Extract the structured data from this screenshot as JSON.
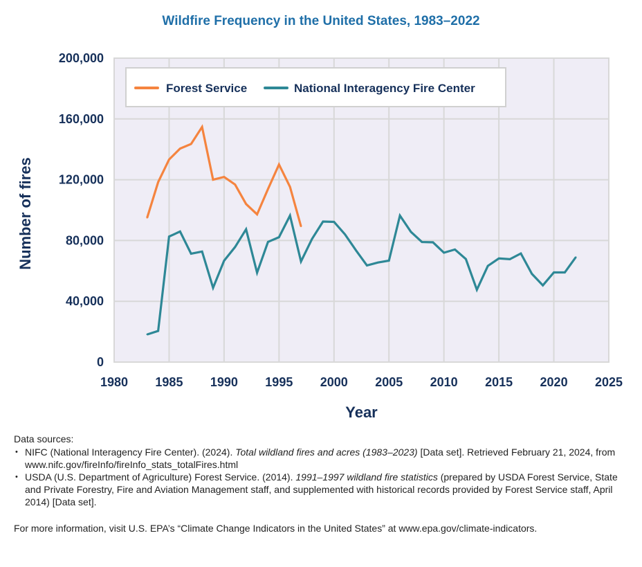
{
  "chart_data": {
    "type": "line",
    "title": "Wildfire Frequency in the United States, 1983–2022",
    "xlabel": "Year",
    "ylabel": "Number of fires",
    "xlim": [
      1980,
      2025
    ],
    "ylim": [
      0,
      200000
    ],
    "x_ticks": [
      1980,
      1985,
      1990,
      1995,
      2000,
      2005,
      2010,
      2015,
      2020,
      2025
    ],
    "x_tick_labels": [
      "1980",
      "1985",
      "1990",
      "1995",
      "2000",
      "2005",
      "2010",
      "2015",
      "2020",
      "2025"
    ],
    "y_ticks": [
      0,
      40000,
      80000,
      120000,
      160000,
      200000
    ],
    "y_tick_labels": [
      "0",
      "40,000",
      "80,000",
      "120,000",
      "160,000",
      "200,000"
    ],
    "grid": true,
    "legend_position": "top-left",
    "series": [
      {
        "name": "Forest Service",
        "color": "#f5843f",
        "x": [
          1983,
          1984,
          1985,
          1986,
          1987,
          1988,
          1989,
          1990,
          1991,
          1992,
          1993,
          1994,
          1995,
          1996,
          1997
        ],
        "values": [
          95000,
          118400,
          133300,
          140500,
          143500,
          154700,
          120000,
          121800,
          116800,
          104000,
          97200,
          113900,
          130000,
          115300,
          89300
        ]
      },
      {
        "name": "National Interagency Fire Center",
        "color": "#2e8896",
        "x": [
          1983,
          1984,
          1985,
          1986,
          1987,
          1988,
          1989,
          1990,
          1991,
          1992,
          1993,
          1994,
          1995,
          1996,
          1997,
          1998,
          1999,
          2000,
          2001,
          2002,
          2003,
          2004,
          2005,
          2006,
          2007,
          2008,
          2009,
          2010,
          2011,
          2012,
          2013,
          2014,
          2015,
          2016,
          2017,
          2018,
          2019,
          2020,
          2021,
          2022
        ],
        "values": [
          18200,
          20500,
          82600,
          85900,
          71300,
          72750,
          48900,
          66700,
          75700,
          87400,
          58800,
          79100,
          82200,
          96400,
          66200,
          81000,
          92500,
          92250,
          84000,
          73500,
          63600,
          65500,
          66750,
          96400,
          85700,
          79000,
          78800,
          72000,
          74100,
          67800,
          47600,
          63300,
          68200,
          67700,
          71500,
          58100,
          50500,
          59000,
          59000,
          69000
        ]
      }
    ]
  },
  "footnotes": {
    "heading": "Data sources:",
    "sources": [
      {
        "before": "NIFC (National Interagency Fire Center). (2024). ",
        "italic": "Total wildland fires and acres (1983–2023)",
        "after": " [Data set]. Retrieved February 21, 2024, from www.nifc.gov/fireInfo/fireInfo_stats_totalFires.html"
      },
      {
        "before": "USDA (U.S. Department of Agriculture) Forest Service. (2014). ",
        "italic": "1991–1997 wildland fire statistics",
        "after": " (prepared by USDA Forest Service, State and Private Forestry, Fire and Aviation Management staff, and supplemented with historical records provided by Forest Service staff, April 2014) [Data set]."
      }
    ],
    "more_info": "For more information, visit U.S. EPA’s “Climate Change Indicators in the United States” at www.epa.gov/climate-indicators."
  }
}
